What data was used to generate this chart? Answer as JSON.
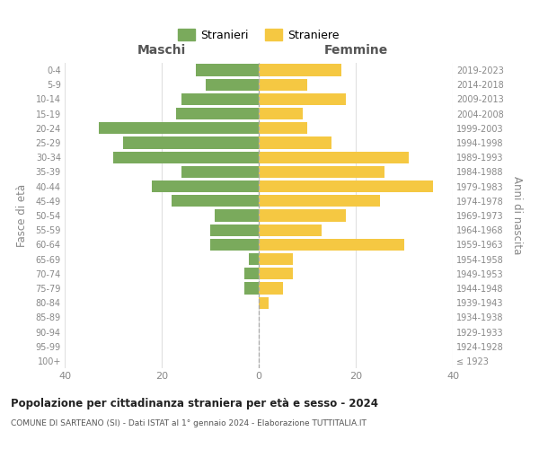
{
  "age_groups": [
    "100+",
    "95-99",
    "90-94",
    "85-89",
    "80-84",
    "75-79",
    "70-74",
    "65-69",
    "60-64",
    "55-59",
    "50-54",
    "45-49",
    "40-44",
    "35-39",
    "30-34",
    "25-29",
    "20-24",
    "15-19",
    "10-14",
    "5-9",
    "0-4"
  ],
  "birth_years": [
    "≤ 1923",
    "1924-1928",
    "1929-1933",
    "1934-1938",
    "1939-1943",
    "1944-1948",
    "1949-1953",
    "1954-1958",
    "1959-1963",
    "1964-1968",
    "1969-1973",
    "1974-1978",
    "1979-1983",
    "1984-1988",
    "1989-1993",
    "1994-1998",
    "1999-2003",
    "2004-2008",
    "2009-2013",
    "2014-2018",
    "2019-2023"
  ],
  "maschi": [
    0,
    0,
    0,
    0,
    0,
    3,
    3,
    2,
    10,
    10,
    9,
    18,
    22,
    16,
    30,
    28,
    33,
    17,
    16,
    11,
    13
  ],
  "femmine": [
    0,
    0,
    0,
    0,
    2,
    5,
    7,
    7,
    30,
    13,
    18,
    25,
    36,
    26,
    31,
    15,
    10,
    9,
    18,
    10,
    17
  ],
  "maschi_color": "#7aaa5c",
  "femmine_color": "#f5c842",
  "title": "Popolazione per cittadinanza straniera per età e sesso - 2024",
  "subtitle": "COMUNE DI SARTEANO (SI) - Dati ISTAT al 1° gennaio 2024 - Elaborazione TUTTITALIA.IT",
  "xlabel_left": "Maschi",
  "xlabel_right": "Femmine",
  "ylabel_left": "Fasce di età",
  "ylabel_right": "Anni di nascita",
  "legend_maschi": "Stranieri",
  "legend_femmine": "Straniere",
  "xlim": 40,
  "background_color": "#ffffff",
  "grid_color": "#e0e0e0",
  "bar_height": 0.82
}
